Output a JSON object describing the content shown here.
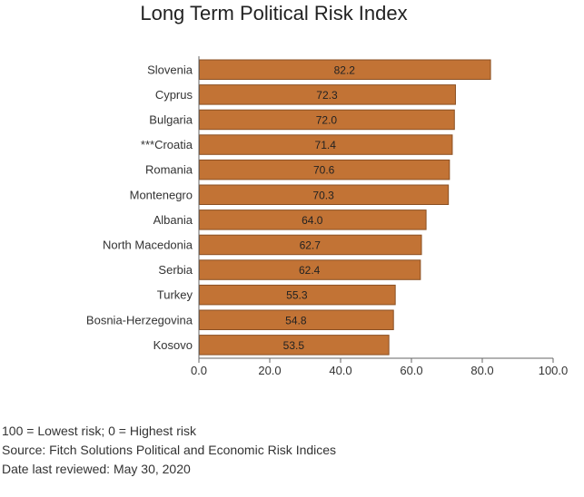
{
  "chart_data": {
    "type": "bar",
    "orientation": "horizontal",
    "title": "Long Term Political Risk Index",
    "categories": [
      "Slovenia",
      "Cyprus",
      "Bulgaria",
      "***Croatia",
      "Romania",
      "Montenegro",
      "Albania",
      "North Macedonia",
      "Serbia",
      "Turkey",
      "Bosnia-Herzegovina",
      "Kosovo"
    ],
    "values": [
      82.2,
      72.3,
      72.0,
      71.4,
      70.6,
      70.3,
      64.0,
      62.7,
      62.4,
      55.3,
      54.8,
      53.5
    ],
    "data_labels": [
      "82.2",
      "72.3",
      "72.0",
      "71.4",
      "70.6",
      "70.3",
      "64.0",
      "62.7",
      "62.4",
      "55.3",
      "54.8",
      "53.5"
    ],
    "xlim": [
      0,
      100
    ],
    "x_ticks": [
      0,
      20,
      40,
      60,
      80,
      100
    ],
    "x_tick_labels": [
      "0.0",
      "20.0",
      "40.0",
      "60.0",
      "80.0",
      "100.0"
    ],
    "bar_color": "#c27335",
    "bar_edge_color": "#8a4f22",
    "grid": false,
    "legend": "none"
  },
  "footnotes": {
    "note": "100 = Lowest risk; 0 = Highest risk",
    "source": "Source: Fitch Solutions Political and Economic Risk Indices",
    "date": "Date last reviewed: May 30, 2020"
  }
}
